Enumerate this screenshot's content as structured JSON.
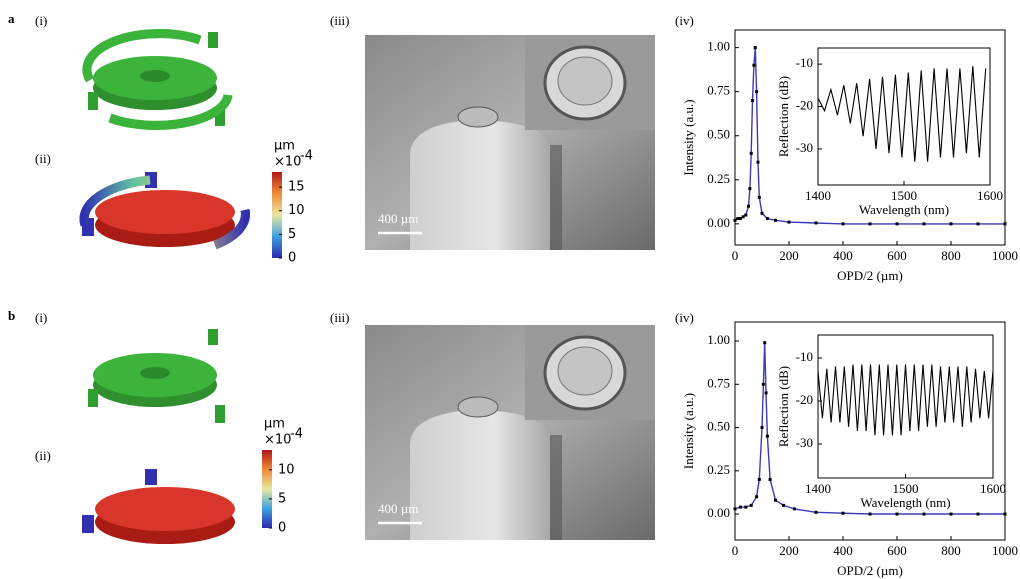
{
  "panels": [
    {
      "label": "a",
      "parts": [
        "(i)",
        "(ii)",
        "(iii)",
        "(iv)"
      ],
      "scale_bar": "400 µm",
      "colorbar": {
        "unit": "µm",
        "multiplier": "×10",
        "exponent": "-4",
        "lim": [
          0,
          18.2
        ],
        "ticks": [
          0,
          5,
          10,
          15
        ]
      }
    },
    {
      "label": "b",
      "parts": [
        "(i)",
        "(ii)",
        "(iii)",
        "(iv)"
      ],
      "scale_bar": "400 µm",
      "colorbar": {
        "unit": "µm",
        "multiplier": "×10",
        "exponent": "-4",
        "lim": [
          0,
          13.4
        ],
        "ticks": [
          0,
          5,
          10
        ]
      }
    }
  ],
  "chart_data": [
    {
      "type": "line",
      "x_label": "OPD/2 (µm)",
      "y_label": "Intensity (a.u.)",
      "x": [
        0,
        10,
        20,
        30,
        40,
        50,
        55,
        60,
        65,
        70,
        75,
        80,
        85,
        90,
        100,
        120,
        150,
        200,
        300,
        400,
        500,
        600,
        700,
        800,
        900,
        1000
      ],
      "series": [
        {
          "color": "#3a3ab8",
          "marker_color": "#000000",
          "values": [
            0.02,
            0.03,
            0.03,
            0.04,
            0.05,
            0.1,
            0.2,
            0.4,
            0.7,
            0.9,
            1.0,
            0.75,
            0.35,
            0.15,
            0.06,
            0.03,
            0.02,
            0.01,
            0.005,
            0,
            0,
            0,
            0,
            0,
            0,
            0
          ]
        }
      ],
      "xlim": [
        0,
        1000
      ],
      "ylim": [
        -0.12,
        1.1
      ],
      "xticks": [
        0,
        200,
        400,
        600,
        800,
        1000
      ],
      "yticks": [
        {
          "value": 0,
          "label": "0.00"
        },
        {
          "value": 0.25,
          "label": "0.25"
        },
        {
          "value": 0.5,
          "label": "0.50"
        },
        {
          "value": 0.75,
          "label": "0.75"
        },
        {
          "value": 1,
          "label": "1.00"
        }
      ]
    },
    {
      "type": "line",
      "x_label": "Wavelength (nm)",
      "y_label": "Reflection (dB)",
      "x": [
        1400,
        1407.5,
        1415,
        1422.5,
        1430,
        1437.5,
        1445,
        1452.5,
        1460,
        1467.5,
        1475,
        1482.5,
        1490,
        1497.5,
        1505,
        1512.5,
        1520,
        1527.5,
        1535,
        1542.5,
        1550,
        1557.5,
        1565,
        1572.5,
        1580,
        1587.5,
        1595
      ],
      "series": [
        {
          "color": "#000000",
          "values": [
            -18,
            -21,
            -16,
            -22,
            -15,
            -24,
            -14.5,
            -27,
            -13.5,
            -30,
            -13,
            -31,
            -12.5,
            -32,
            -12,
            -33,
            -11.5,
            -33,
            -11,
            -32,
            -11,
            -32,
            -11,
            -31,
            -10.5,
            -32,
            -11
          ]
        }
      ],
      "xlim": [
        1400,
        1600
      ],
      "ylim": [
        -38.5,
        -6.2
      ],
      "xticks": [
        1400,
        1500,
        1600
      ],
      "yticks": [
        -30,
        -20,
        -10
      ]
    },
    {
      "type": "line",
      "x_label": "OPD/2 (µm)",
      "y_label": "Intensity (a.u.)",
      "x": [
        0,
        20,
        40,
        60,
        80,
        90,
        100,
        105,
        110,
        115,
        120,
        130,
        150,
        180,
        220,
        300,
        400,
        500,
        600,
        700,
        800,
        900,
        1000
      ],
      "series": [
        {
          "color": "#3a3ab8",
          "marker_color": "#000000",
          "values": [
            0.03,
            0.04,
            0.04,
            0.05,
            0.1,
            0.2,
            0.5,
            0.75,
            0.99,
            0.7,
            0.45,
            0.2,
            0.08,
            0.05,
            0.03,
            0.01,
            0.005,
            0,
            0,
            0,
            0,
            0,
            0
          ]
        }
      ],
      "xlim": [
        0,
        1000
      ],
      "ylim": [
        -0.15,
        1.11
      ],
      "xticks": [
        0,
        200,
        400,
        600,
        800,
        1000
      ],
      "yticks": [
        {
          "value": 0,
          "label": "0.00"
        },
        {
          "value": 0.25,
          "label": "0.25"
        },
        {
          "value": 0.5,
          "label": "0.50"
        },
        {
          "value": 0.75,
          "label": "0.75"
        },
        {
          "value": 1,
          "label": "1.00"
        }
      ]
    },
    {
      "type": "line",
      "x_label": "Wavelength (nm)",
      "y_label": "Reflection (dB)",
      "x": [
        1400,
        1405,
        1410,
        1415,
        1420,
        1425,
        1430,
        1435,
        1440,
        1445,
        1450,
        1455,
        1460,
        1465,
        1470,
        1475,
        1480,
        1485,
        1490,
        1495,
        1500,
        1505,
        1510,
        1515,
        1520,
        1525,
        1530,
        1535,
        1540,
        1545,
        1550,
        1555,
        1560,
        1565,
        1570,
        1575,
        1580,
        1585,
        1590,
        1595,
        1600
      ],
      "series": [
        {
          "color": "#000000",
          "values": [
            -13,
            -24,
            -12.5,
            -25,
            -12,
            -25,
            -12,
            -26,
            -11.5,
            -27,
            -11.5,
            -27,
            -11.5,
            -28,
            -11.5,
            -28,
            -11.5,
            -28,
            -11.5,
            -28,
            -11.5,
            -27,
            -11.5,
            -27,
            -11.5,
            -26,
            -11.5,
            -26,
            -12,
            -25,
            -12,
            -25,
            -12,
            -26,
            -12,
            -25,
            -12.5,
            -24,
            -13,
            -24,
            -13
          ]
        }
      ],
      "xlim": [
        1400,
        1600
      ],
      "ylim": [
        -37.9,
        -4.65
      ],
      "xticks": [
        1400,
        1500,
        1600
      ],
      "yticks": [
        -30,
        -20,
        -10
      ]
    }
  ]
}
